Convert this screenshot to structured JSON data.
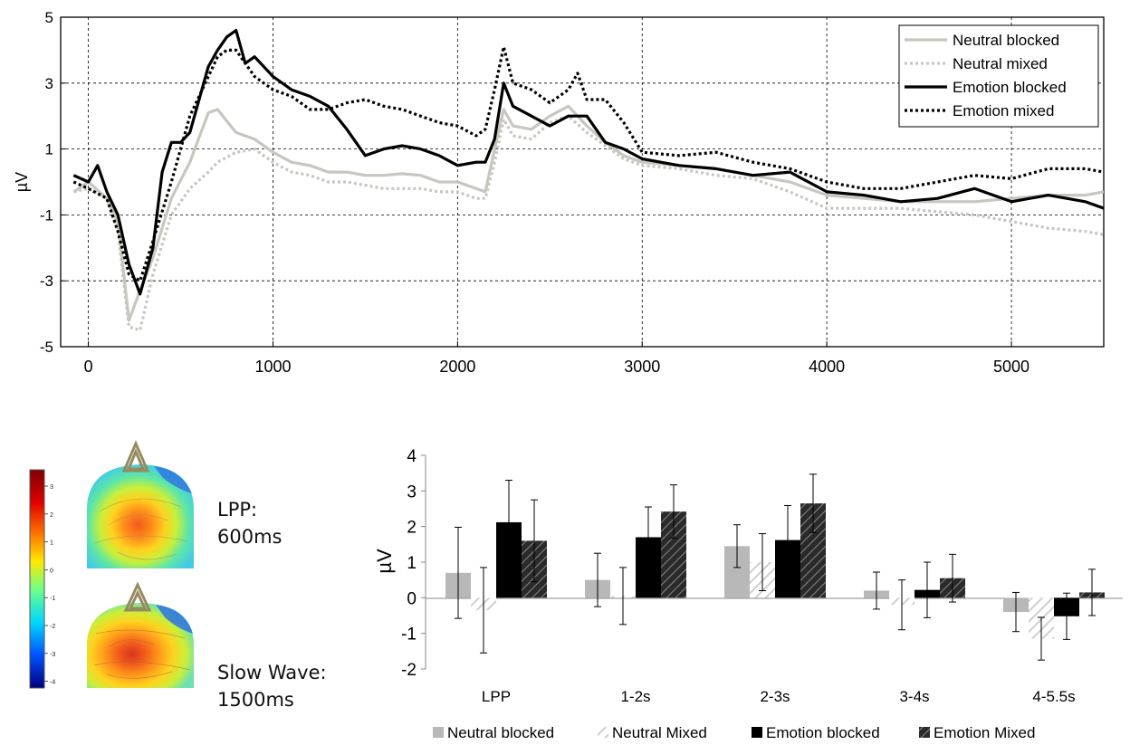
{
  "chart_data": [
    {
      "type": "line",
      "ylabel": "µV",
      "xlim": [
        -150,
        5500
      ],
      "ylim": [
        -5,
        5
      ],
      "x_ticks": [
        0,
        1000,
        2000,
        3000,
        4000,
        5000
      ],
      "y_ticks": [
        5,
        3,
        1,
        -1,
        -3,
        -5
      ],
      "grid": true,
      "legend_position": "top-right",
      "legend": [
        "Neutral blocked",
        "Neutral mixed",
        "Emotion blocked",
        "Emotion mixed"
      ],
      "series": [
        {
          "name": "Neutral blocked",
          "color": "#c8c6c0",
          "dash": "solid",
          "x": [
            -80,
            0,
            100,
            160,
            220,
            280,
            350,
            450,
            550,
            650,
            700,
            800,
            900,
            1000,
            1100,
            1200,
            1300,
            1400,
            1500,
            1600,
            1700,
            1800,
            1900,
            2000,
            2100,
            2150,
            2200,
            2250,
            2300,
            2400,
            2500,
            2600,
            2700,
            2800,
            2900,
            3000,
            3200,
            3400,
            3600,
            3800,
            4000,
            4200,
            4400,
            4600,
            4800,
            5000,
            5200,
            5400,
            5500
          ],
          "y": [
            -0.3,
            0,
            -0.5,
            -1.2,
            -4.2,
            -3.3,
            -2.3,
            -0.5,
            0.6,
            2.1,
            2.2,
            1.5,
            1.3,
            0.9,
            0.6,
            0.5,
            0.3,
            0.3,
            0.2,
            0.2,
            0.25,
            0.2,
            0.0,
            0.0,
            -0.2,
            -0.3,
            1.0,
            2.2,
            1.7,
            1.6,
            2.0,
            2.3,
            1.7,
            1.2,
            0.8,
            0.6,
            0.5,
            0.4,
            0.2,
            0.0,
            -0.4,
            -0.5,
            -0.6,
            -0.6,
            -0.6,
            -0.5,
            -0.4,
            -0.4,
            -0.3
          ]
        },
        {
          "name": "Neutral mixed",
          "color": "#c8c6c0",
          "dash": "dotted",
          "x": [
            -80,
            0,
            100,
            160,
            220,
            280,
            350,
            450,
            550,
            650,
            700,
            800,
            900,
            1000,
            1100,
            1200,
            1300,
            1400,
            1500,
            1600,
            1700,
            1800,
            1900,
            2000,
            2100,
            2150,
            2200,
            2250,
            2300,
            2400,
            2500,
            2600,
            2700,
            2800,
            2900,
            3000,
            3200,
            3400,
            3600,
            3800,
            4000,
            4200,
            4400,
            4600,
            4800,
            5000,
            5200,
            5400,
            5500
          ],
          "y": [
            -0.3,
            -0.2,
            -0.5,
            -1.5,
            -4.4,
            -4.5,
            -2.8,
            -1.0,
            -0.2,
            0.3,
            0.6,
            0.9,
            1.0,
            0.6,
            0.3,
            0.2,
            0.0,
            0.0,
            -0.1,
            -0.2,
            -0.2,
            -0.2,
            -0.3,
            -0.3,
            -0.5,
            -0.5,
            0.6,
            1.9,
            1.4,
            1.3,
            1.8,
            2.0,
            1.5,
            1.1,
            0.7,
            0.5,
            0.4,
            0.2,
            0.1,
            -0.3,
            -0.8,
            -0.8,
            -0.8,
            -0.9,
            -1.0,
            -1.2,
            -1.4,
            -1.5,
            -1.6
          ]
        },
        {
          "name": "Emotion blocked",
          "color": "#000000",
          "dash": "solid",
          "x": [
            -80,
            0,
            50,
            100,
            160,
            220,
            280,
            350,
            400,
            450,
            500,
            550,
            600,
            650,
            700,
            750,
            800,
            850,
            900,
            1000,
            1100,
            1200,
            1300,
            1400,
            1500,
            1600,
            1700,
            1800,
            1900,
            2000,
            2100,
            2150,
            2200,
            2250,
            2300,
            2400,
            2500,
            2600,
            2700,
            2800,
            2900,
            3000,
            3200,
            3400,
            3600,
            3800,
            4000,
            4200,
            4400,
            4600,
            4800,
            5000,
            5200,
            5400,
            5500
          ],
          "y": [
            0.2,
            0,
            0.5,
            -0.3,
            -1.0,
            -2.5,
            -3.4,
            -2.0,
            0.3,
            1.2,
            1.2,
            1.5,
            2.5,
            3.5,
            4.0,
            4.4,
            4.6,
            3.6,
            3.8,
            3.2,
            2.8,
            2.6,
            2.3,
            1.6,
            0.8,
            1.0,
            1.1,
            1.0,
            0.8,
            0.5,
            0.6,
            0.6,
            1.3,
            3.0,
            2.3,
            2.0,
            1.7,
            2.0,
            2.0,
            1.2,
            1.0,
            0.7,
            0.5,
            0.4,
            0.2,
            0.3,
            -0.3,
            -0.4,
            -0.6,
            -0.5,
            -0.2,
            -0.6,
            -0.4,
            -0.6,
            -0.8
          ]
        },
        {
          "name": "Emotion mixed",
          "color": "#000000",
          "dash": "dotted",
          "x": [
            -80,
            0,
            100,
            160,
            220,
            280,
            350,
            450,
            550,
            650,
            700,
            750,
            800,
            900,
            1000,
            1100,
            1200,
            1300,
            1400,
            1500,
            1600,
            1700,
            1800,
            1900,
            2000,
            2100,
            2150,
            2200,
            2250,
            2300,
            2400,
            2500,
            2600,
            2650,
            2700,
            2800,
            2900,
            3000,
            3200,
            3400,
            3600,
            3800,
            4000,
            4200,
            4400,
            4600,
            4800,
            5000,
            5200,
            5400,
            5500
          ],
          "y": [
            0.0,
            -0.2,
            -0.5,
            -1.5,
            -2.8,
            -3.0,
            -1.8,
            0.0,
            2.0,
            3.2,
            3.8,
            4.0,
            4.0,
            3.2,
            2.8,
            2.6,
            2.2,
            2.2,
            2.4,
            2.5,
            2.3,
            2.2,
            2.0,
            1.8,
            1.7,
            1.4,
            1.6,
            2.8,
            4.1,
            3.0,
            2.8,
            2.4,
            2.8,
            3.3,
            2.5,
            2.5,
            1.8,
            0.9,
            0.8,
            0.9,
            0.6,
            0.4,
            0.0,
            -0.2,
            -0.2,
            0.0,
            0.2,
            0.1,
            0.4,
            0.4,
            0.3
          ]
        }
      ]
    },
    {
      "type": "bar",
      "ylabel": "µV",
      "ylim": [
        -2,
        4
      ],
      "y_ticks": [
        4,
        3,
        2,
        1,
        0,
        -1,
        -2
      ],
      "categories": [
        "LPP",
        "1-2s",
        "2-3s",
        "3-4s",
        "4-5.5s"
      ],
      "legend_position": "bottom",
      "series": [
        {
          "name": "Neutral blocked",
          "color": "#b8b8b8",
          "pattern": "solid",
          "values": [
            0.7,
            0.5,
            1.45,
            0.2,
            -0.4
          ],
          "err": [
            1.28,
            0.75,
            0.6,
            0.52,
            0.55
          ]
        },
        {
          "name": "Neutral Mixed",
          "color": "#dcdcdc",
          "pattern": "hatch-light",
          "values": [
            -0.35,
            0.05,
            1.0,
            -0.2,
            -1.15
          ],
          "err": [
            1.2,
            0.8,
            0.8,
            0.7,
            0.6
          ]
        },
        {
          "name": "Emotion blocked",
          "color": "#000000",
          "pattern": "solid",
          "values": [
            2.12,
            1.7,
            1.62,
            0.22,
            -0.52
          ],
          "err": [
            1.18,
            0.85,
            0.97,
            0.78,
            0.65
          ]
        },
        {
          "name": "Emotion Mixed",
          "color": "#444444",
          "pattern": "hatch-dark",
          "values": [
            1.6,
            2.42,
            2.65,
            0.55,
            0.15
          ],
          "err": [
            1.15,
            0.75,
            0.82,
            0.67,
            0.65
          ]
        }
      ]
    }
  ],
  "topomaps": {
    "scale_ticks": [
      "3",
      "2",
      "1",
      "0",
      "-1",
      "-2",
      "-3",
      "-4"
    ],
    "maps": [
      {
        "label_line1": "LPP:",
        "label_line2": "600ms"
      },
      {
        "label_line1": "Slow Wave:",
        "label_line2": "1500ms"
      }
    ]
  }
}
